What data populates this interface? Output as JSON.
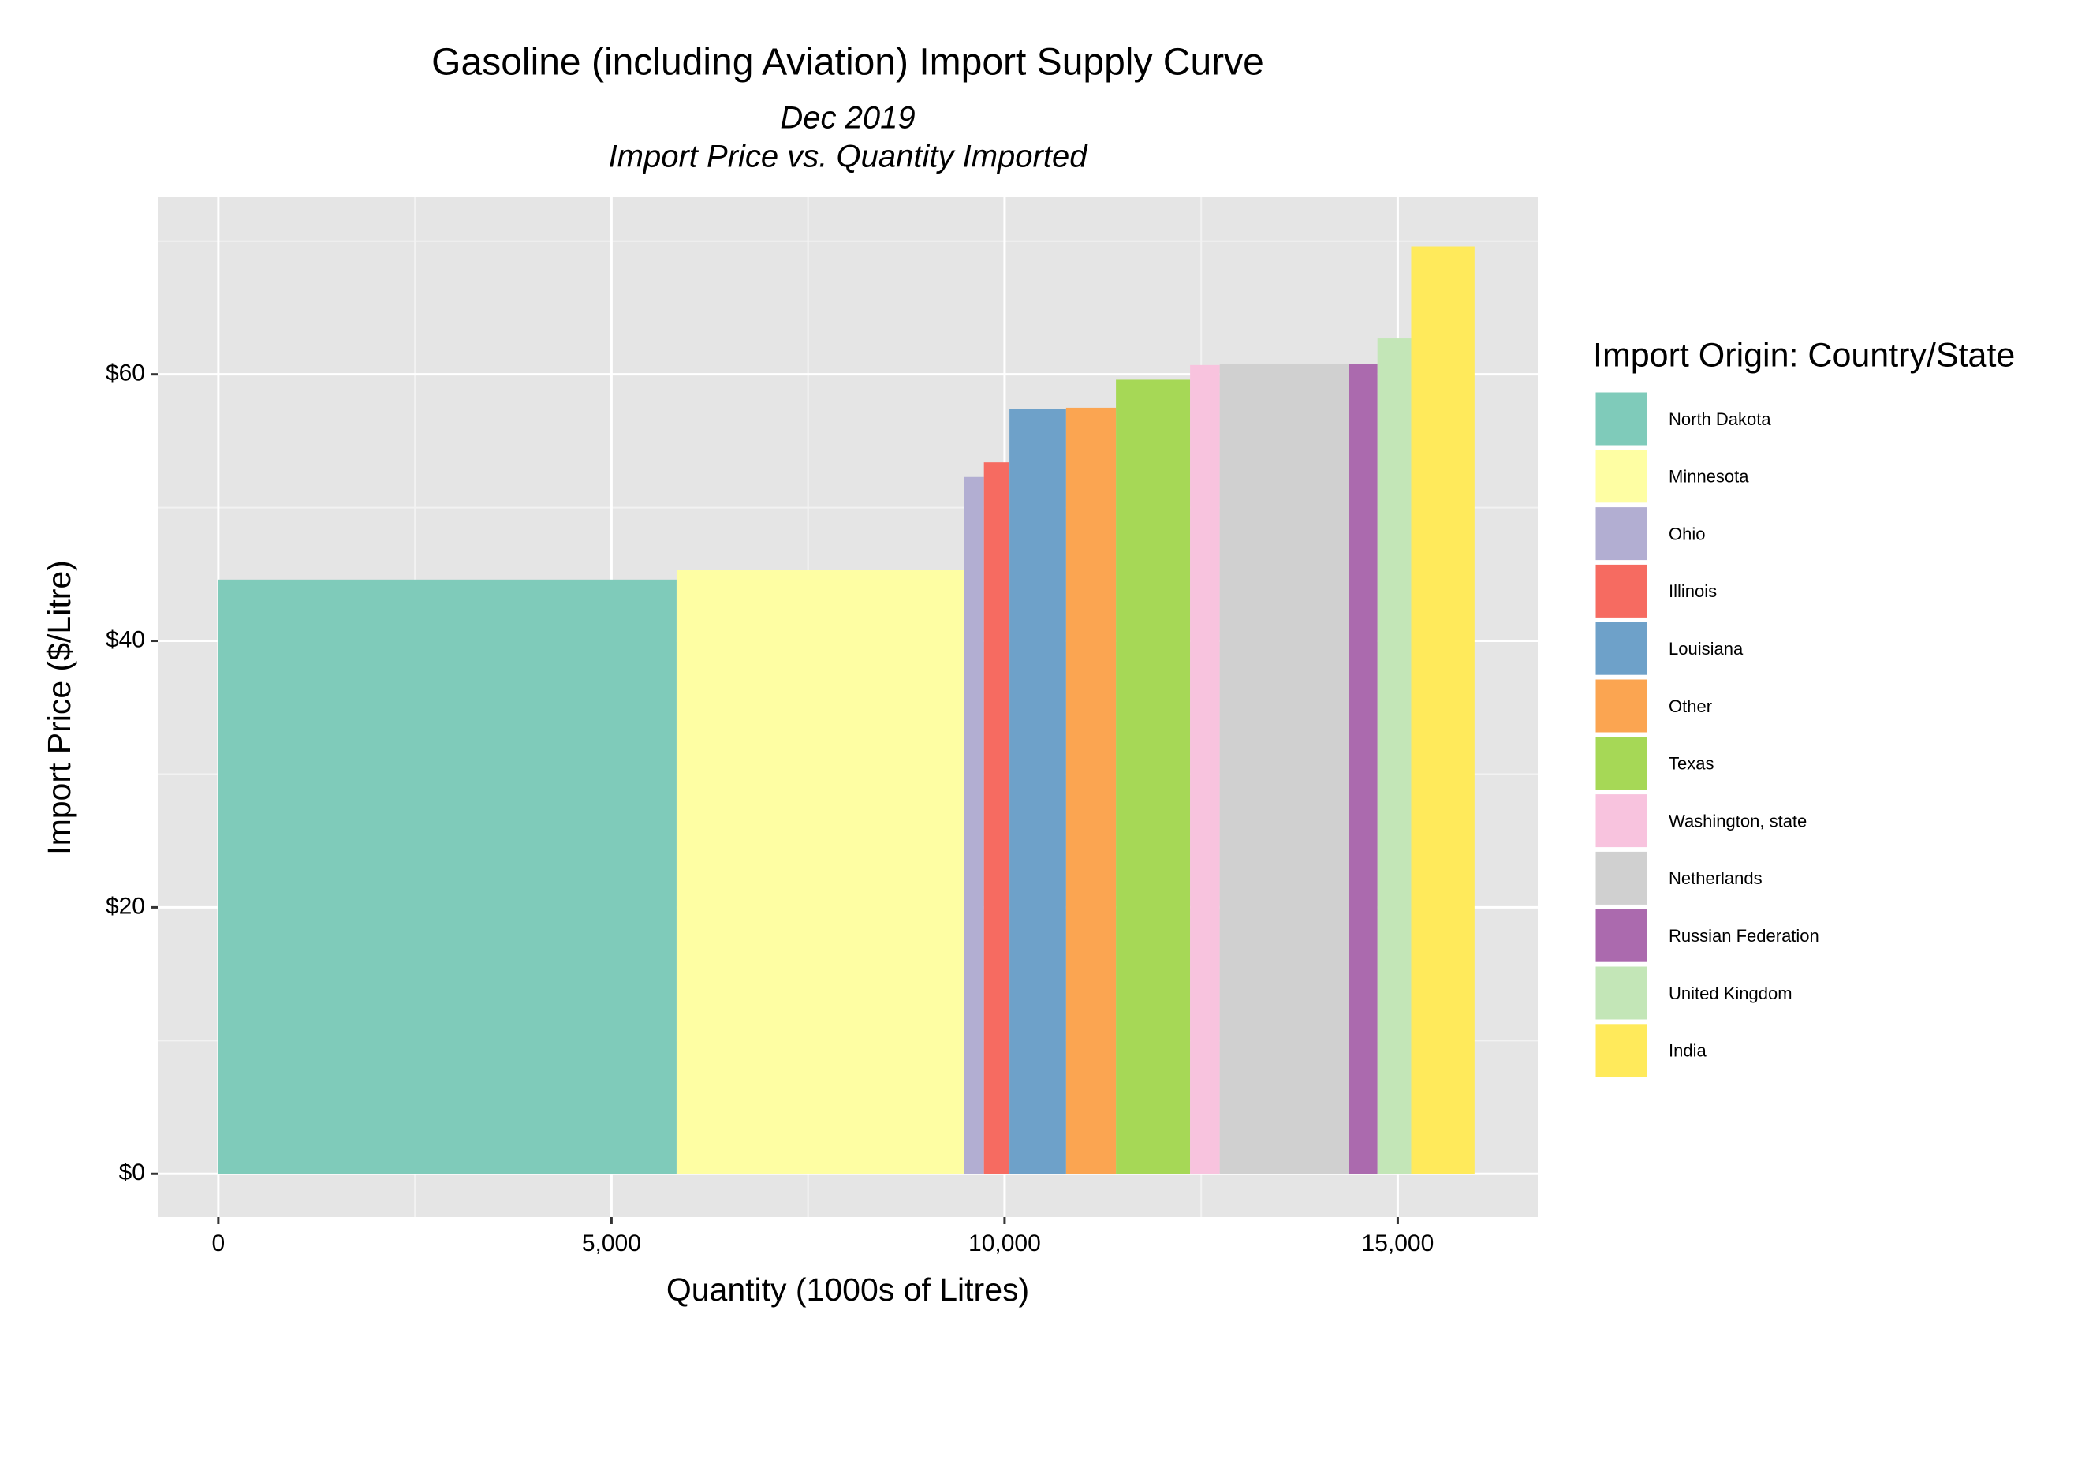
{
  "chart_data": {
    "type": "variable-width-bar",
    "title": "Gasoline (including Aviation) Import Supply Curve",
    "subtitle": [
      "Dec 2019",
      "Import Price vs. Quantity Imported"
    ],
    "x_label": "Quantity (1000s of Litres)",
    "y_label": "Import Price ($/Litre)",
    "legend_title": "Import Origin: Country/State",
    "legend_position": "right",
    "grid": true,
    "xlim": [
      -771,
      16781
    ],
    "ylim": [
      -3.24,
      73.3
    ],
    "xticks": [
      0,
      {
        "value": 5000,
        "label": "5,000"
      },
      {
        "value": 10000,
        "label": "10,000"
      },
      {
        "value": 15000,
        "label": "15,000"
      }
    ],
    "yticks": [
      {
        "value": 0,
        "label": "$0"
      },
      {
        "value": 20,
        "label": "$20"
      },
      {
        "value": 40,
        "label": "$40"
      },
      {
        "value": 60,
        "label": "$60"
      }
    ],
    "series": [
      {
        "name": "North Dakota",
        "color": "#7fcbba",
        "quantity": 5828,
        "price": 44.6
      },
      {
        "name": "Minnesota",
        "color": "#fefea3",
        "quantity": 3652,
        "price": 45.3
      },
      {
        "name": "Ohio",
        "color": "#b2aed2",
        "quantity": 257,
        "price": 52.3
      },
      {
        "name": "Illinois",
        "color": "#f66b61",
        "quantity": 325,
        "price": 53.4
      },
      {
        "name": "Louisiana",
        "color": "#6ea1c9",
        "quantity": 720,
        "price": 57.4
      },
      {
        "name": "Other",
        "color": "#fba551",
        "quantity": 634,
        "price": 57.5
      },
      {
        "name": "Texas",
        "color": "#a6d856",
        "quantity": 943,
        "price": 59.6
      },
      {
        "name": "Washington, state",
        "color": "#f8c3de",
        "quantity": 377,
        "price": 60.7
      },
      {
        "name": "Netherlands",
        "color": "#d0d0d0",
        "quantity": 1646,
        "price": 60.8
      },
      {
        "name": "Russian Federation",
        "color": "#ab6aae",
        "quantity": 360,
        "price": 60.8
      },
      {
        "name": "United Kingdom",
        "color": "#c3e6b7",
        "quantity": 429,
        "price": 62.7
      },
      {
        "name": "India",
        "color": "#ffea5b",
        "quantity": 806,
        "price": 69.6
      }
    ]
  }
}
